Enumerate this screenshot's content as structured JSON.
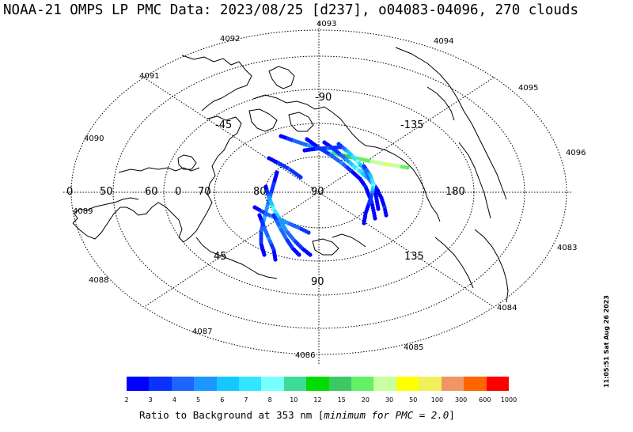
{
  "title": "NOAA-21 OMPS LP PMC Data: 2023/08/25 [d237], o04083-04096, 270 clouds",
  "timestamp": "11:05:51 Sat Aug 26 2023",
  "colorbar": {
    "caption_prefix": "Ratio to Background at 353 nm [",
    "caption_em": "minimum for PMC = 2.0",
    "caption_suffix": "]",
    "labels": [
      "2",
      "3",
      "4",
      "5",
      "6",
      "7",
      "8",
      "10",
      "12",
      "15",
      "20",
      "30",
      "50",
      "100",
      "300",
      "600",
      "1000"
    ],
    "colors": [
      "#0000ff",
      "#0a32ff",
      "#1e64ff",
      "#1e96ff",
      "#14c8ff",
      "#32e6ff",
      "#78ffff",
      "#3cdc96",
      "#00dc00",
      "#3cc864",
      "#64f064",
      "#c8ffa0",
      "#ffff00",
      "#f0f05a",
      "#f09664",
      "#ff6400",
      "#ff0000"
    ]
  },
  "orbit_labels": [
    {
      "text": "4093"
    },
    {
      "text": "4094"
    },
    {
      "text": "4092"
    },
    {
      "text": "4095"
    },
    {
      "text": "4091"
    },
    {
      "text": "4096"
    },
    {
      "text": "4090"
    },
    {
      "text": "4089"
    },
    {
      "text": "4083"
    },
    {
      "text": "4088"
    },
    {
      "text": "4084"
    },
    {
      "text": "4087"
    },
    {
      "text": "4085"
    },
    {
      "text": "4086"
    }
  ],
  "longitude_labels": [
    {
      "text": "-90"
    },
    {
      "text": "-45"
    },
    {
      "text": "-135"
    },
    {
      "text": "0"
    },
    {
      "text": "50"
    },
    {
      "text": "60"
    },
    {
      "text": "0"
    },
    {
      "text": "70"
    },
    {
      "text": "80"
    },
    {
      "text": "90"
    },
    {
      "text": "180"
    },
    {
      "text": "45"
    },
    {
      "text": "135"
    },
    {
      "text": "90"
    }
  ],
  "tracks": [
    {
      "name": "04083-track",
      "points": [
        [
          355,
          172,
          2
        ],
        [
          372,
          178,
          4
        ],
        [
          390,
          184,
          5
        ],
        [
          410,
          190,
          8
        ],
        [
          430,
          196,
          12
        ],
        [
          450,
          200,
          20
        ],
        [
          470,
          204,
          30
        ],
        [
          490,
          208,
          50
        ],
        [
          505,
          210,
          30
        ],
        [
          515,
          212,
          20
        ]
      ]
    },
    {
      "name": "04084-track",
      "points": [
        [
          388,
          176,
          2
        ],
        [
          402,
          186,
          3
        ],
        [
          418,
          196,
          4
        ],
        [
          432,
          206,
          5
        ],
        [
          444,
          216,
          3
        ],
        [
          455,
          226,
          2
        ],
        [
          462,
          236,
          3
        ],
        [
          466,
          246,
          2
        ],
        [
          470,
          256,
          3
        ],
        [
          472,
          266,
          2
        ],
        [
          474,
          276,
          2
        ]
      ]
    },
    {
      "name": "04085-track",
      "points": [
        [
          410,
          180,
          2
        ],
        [
          424,
          190,
          3
        ],
        [
          438,
          202,
          5
        ],
        [
          452,
          214,
          8
        ],
        [
          466,
          226,
          5
        ],
        [
          476,
          238,
          3
        ],
        [
          482,
          250,
          2
        ],
        [
          486,
          262,
          3
        ],
        [
          488,
          272,
          2
        ]
      ]
    },
    {
      "name": "04086-track",
      "points": [
        [
          428,
          182,
          3
        ],
        [
          440,
          192,
          6
        ],
        [
          452,
          204,
          8
        ],
        [
          462,
          216,
          5
        ],
        [
          470,
          228,
          3
        ],
        [
          474,
          240,
          2
        ],
        [
          476,
          252,
          2
        ],
        [
          478,
          264,
          2
        ]
      ]
    },
    {
      "name": "04087-track",
      "points": [
        [
          340,
          200,
          2
        ],
        [
          352,
          206,
          3
        ],
        [
          366,
          214,
          4
        ],
        [
          380,
          224,
          3
        ]
      ]
    },
    {
      "name": "04088-track",
      "points": [
        [
          350,
          218,
          2
        ],
        [
          346,
          232,
          3
        ],
        [
          342,
          246,
          4
        ],
        [
          338,
          260,
          5
        ],
        [
          334,
          276,
          6
        ],
        [
          330,
          292,
          4
        ],
        [
          330,
          308,
          3
        ],
        [
          334,
          322,
          2
        ]
      ]
    },
    {
      "name": "04089-track",
      "points": [
        [
          336,
          236,
          2
        ],
        [
          340,
          250,
          5
        ],
        [
          346,
          264,
          8
        ],
        [
          354,
          278,
          6
        ],
        [
          362,
          292,
          5
        ],
        [
          372,
          304,
          4
        ],
        [
          382,
          314,
          3
        ],
        [
          392,
          322,
          2
        ]
      ]
    },
    {
      "name": "04090-track",
      "points": [
        [
          322,
          262,
          2
        ],
        [
          336,
          270,
          4
        ],
        [
          350,
          276,
          6
        ],
        [
          364,
          282,
          5
        ],
        [
          378,
          288,
          4
        ],
        [
          390,
          294,
          3
        ]
      ]
    },
    {
      "name": "04091-track",
      "points": [
        [
          346,
          272,
          3
        ],
        [
          354,
          288,
          5
        ],
        [
          362,
          302,
          4
        ],
        [
          370,
          314,
          3
        ],
        [
          378,
          322,
          2
        ]
      ]
    },
    {
      "name": "04092-track",
      "points": [
        [
          328,
          272,
          2
        ],
        [
          334,
          288,
          4
        ],
        [
          340,
          302,
          5
        ],
        [
          346,
          316,
          3
        ],
        [
          348,
          328,
          2
        ]
      ]
    },
    {
      "name": "04093-track",
      "points": [
        [
          385,
          190,
          2
        ],
        [
          400,
          188,
          3
        ],
        [
          415,
          187,
          4
        ],
        [
          430,
          186,
          3
        ]
      ]
    },
    {
      "name": "04094-track",
      "points": [
        [
          460,
          210,
          3
        ],
        [
          468,
          222,
          6
        ],
        [
          472,
          234,
          8
        ],
        [
          470,
          246,
          4
        ],
        [
          466,
          258,
          3
        ],
        [
          462,
          270,
          2
        ],
        [
          460,
          282,
          2
        ]
      ]
    }
  ]
}
